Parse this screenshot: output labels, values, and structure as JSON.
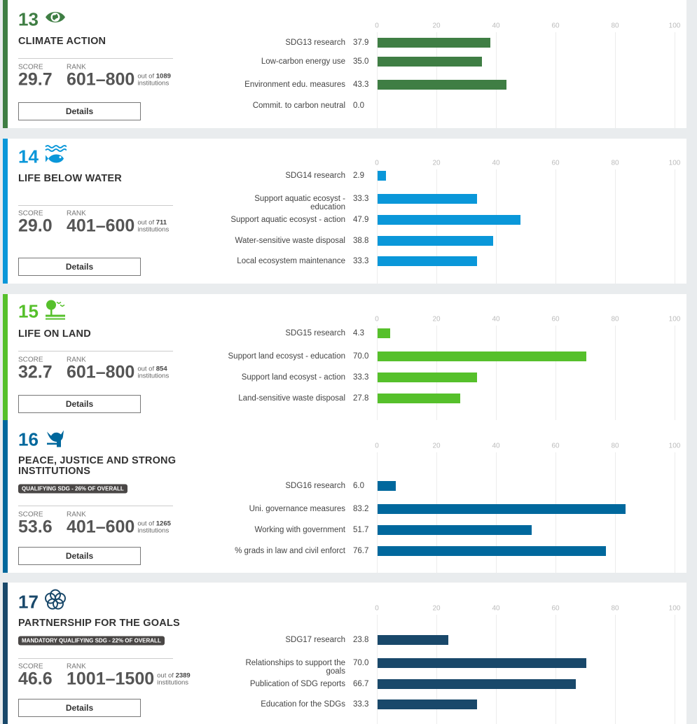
{
  "common": {
    "score_label": "SCORE",
    "rank_label": "RANK",
    "out_of": "out of",
    "institutions": "institutions",
    "details": "Details",
    "axis_ticks": [
      "0",
      "20",
      "40",
      "60",
      "80",
      "100"
    ]
  },
  "cards": [
    {
      "number": "13",
      "icon": "climate-eye-globe-icon",
      "color": "#3f7e44",
      "title": "CLIMATE ACTION",
      "badge": "",
      "score": "29.7",
      "rank": "601–800",
      "total": "1089",
      "chart_data": {
        "type": "bar",
        "xlim": [
          0,
          100
        ],
        "categories": [
          "SDG13 research",
          "Low-carbon energy use",
          "Environment edu. measures",
          "Commit. to carbon neutral"
        ],
        "values": [
          37.9,
          35.0,
          43.3,
          0.0
        ],
        "value_labels": [
          "37.9",
          "35.0",
          "43.3",
          "0.0"
        ]
      }
    },
    {
      "number": "14",
      "icon": "fish-waves-icon",
      "color": "#0a97d9",
      "title": "LIFE BELOW WATER",
      "badge": "",
      "score": "29.0",
      "rank": "401–600",
      "total": "711",
      "chart_data": {
        "type": "bar",
        "xlim": [
          0,
          100
        ],
        "categories": [
          "SDG14 research",
          "Support aquatic ecosyst - education",
          "Support aquatic ecosyst - action",
          "Water-sensitive waste disposal",
          "Local ecosystem maintenance"
        ],
        "values": [
          2.9,
          33.3,
          47.9,
          38.8,
          33.3
        ],
        "value_labels": [
          "2.9",
          "33.3",
          "47.9",
          "38.8",
          "33.3"
        ]
      }
    },
    {
      "number": "15",
      "icon": "tree-birds-icon",
      "color": "#56c02b",
      "title": "LIFE ON LAND",
      "badge": "",
      "score": "32.7",
      "rank": "601–800",
      "total": "854",
      "chart_data": {
        "type": "bar",
        "xlim": [
          0,
          100
        ],
        "categories": [
          "SDG15 research",
          "Support land ecosyst - education",
          "Support land ecosyst - action",
          "Land-sensitive waste disposal"
        ],
        "values": [
          4.3,
          70.0,
          33.3,
          27.8
        ],
        "value_labels": [
          "4.3",
          "70.0",
          "33.3",
          "27.8"
        ]
      }
    },
    {
      "number": "16",
      "icon": "dove-gavel-icon",
      "color": "#00689d",
      "title": "PEACE, JUSTICE AND STRONG INSTITUTIONS",
      "badge": "QUALIFYING SDG - 26% OF OVERALL",
      "score": "53.6",
      "rank": "401–600",
      "total": "1265",
      "chart_data": {
        "type": "bar",
        "xlim": [
          0,
          100
        ],
        "categories": [
          "SDG16 research",
          "Uni. governance measures",
          "Working with government",
          "% grads in law and civil enforct"
        ],
        "values": [
          6.0,
          83.2,
          51.7,
          76.7
        ],
        "value_labels": [
          "6.0",
          "83.2",
          "51.7",
          "76.7"
        ]
      }
    },
    {
      "number": "17",
      "icon": "partnership-rings-icon",
      "color": "#19486a",
      "title": "PARTNERSHIP FOR THE GOALS",
      "badge": "MANDATORY QUALIFYING SDG - 22% OF OVERALL",
      "score": "46.6",
      "rank": "1001–1500",
      "total": "2389",
      "chart_data": {
        "type": "bar",
        "xlim": [
          0,
          100
        ],
        "categories": [
          "SDG17 research",
          "Relationships to support the goals",
          "Publication of SDG reports",
          "Education for the SDGs"
        ],
        "values": [
          23.8,
          70.0,
          66.7,
          33.3
        ],
        "value_labels": [
          "23.8",
          "70.0",
          "66.7",
          "33.3"
        ]
      }
    }
  ]
}
